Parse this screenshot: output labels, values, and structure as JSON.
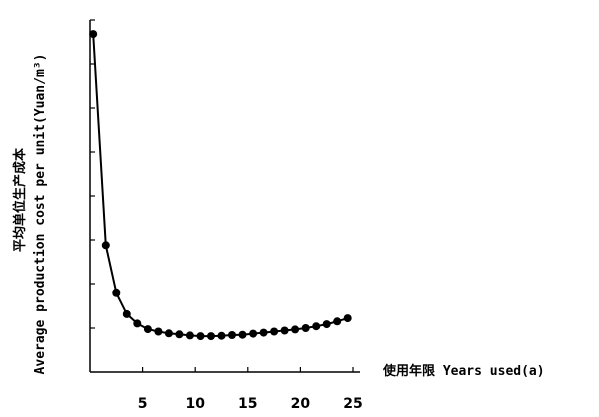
{
  "chart_data": {
    "type": "line",
    "x": [
      0.3,
      1.5,
      2.5,
      3.5,
      4.5,
      5.5,
      6.5,
      7.5,
      8.5,
      9.5,
      10.5,
      11.5,
      12.5,
      13.5,
      14.5,
      15.5,
      16.5,
      17.5,
      18.5,
      19.5,
      20.5,
      21.5,
      22.5,
      23.5,
      24.5
    ],
    "series": [
      {
        "values": [
          96,
          36,
          22.5,
          16.5,
          13.8,
          12.2,
          11.5,
          11.0,
          10.7,
          10.4,
          10.2,
          10.2,
          10.3,
          10.5,
          10.6,
          10.9,
          11.2,
          11.5,
          11.8,
          12.1,
          12.5,
          13.0,
          13.6,
          14.4,
          15.3
        ]
      }
    ],
    "xticks": [
      "5",
      "10",
      "15",
      "20",
      "25"
    ],
    "xlim": [
      0,
      25
    ],
    "ylim": [
      0,
      100
    ],
    "xlabel": "使用年限 Years used(a)",
    "ylabel_cn": "平均单位生产成本",
    "ylabel_en": "Average production cost per unit(Yuan/m³)",
    "grid": false,
    "colors": {
      "line": "#000000",
      "marker": "#000000"
    }
  }
}
